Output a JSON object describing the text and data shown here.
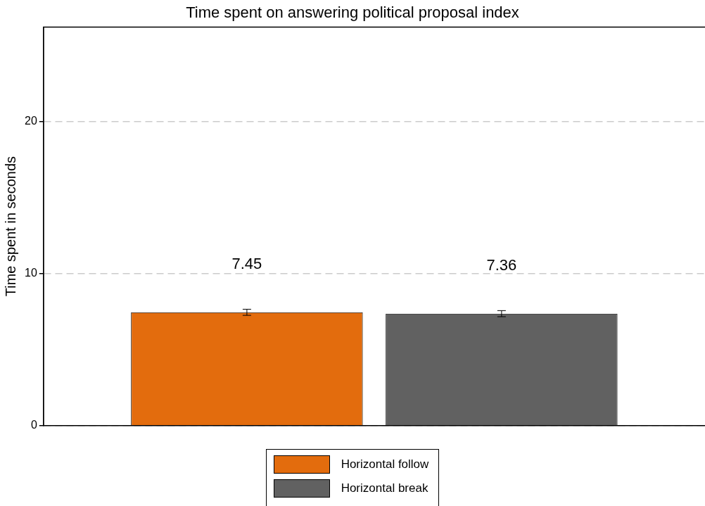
{
  "chart_data": {
    "type": "bar",
    "title": "Time spent on answering political proposal index",
    "ylabel": "Time spent in seconds",
    "categories": [
      null
    ],
    "series": [
      {
        "name": "Horizontal follow",
        "color": "#e36c0d",
        "values": [
          7.45
        ],
        "errors": [
          0.2
        ]
      },
      {
        "name": "Horizontal break",
        "color": "#616161",
        "values": [
          7.36
        ],
        "errors": [
          0.2
        ]
      }
    ],
    "ylim": [
      0,
      26.2
    ],
    "yticks": [
      0,
      10,
      20
    ],
    "grid": "y",
    "legend": "bottom",
    "data_labels": true
  }
}
